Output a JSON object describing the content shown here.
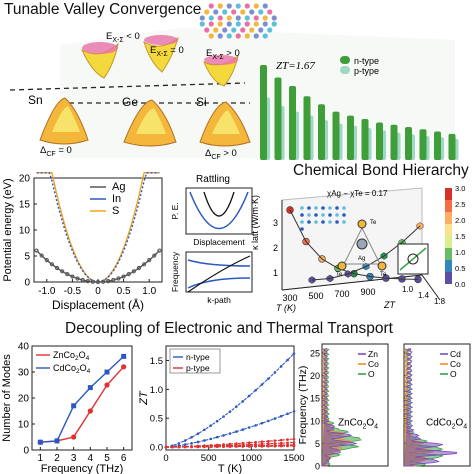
{
  "titles": {
    "tunable": "Tunable Valley Convergence",
    "bond": "Chemical Bond Hierarchy",
    "decoupling": "Decoupling of Electronic and Thermal Transport"
  },
  "valley_panel": {
    "labels_top": [
      "E",
      "E",
      "E"
    ],
    "e_labels": [
      {
        "sub": "X-Σ",
        "op": " < 0"
      },
      {
        "sub": "X-Σ",
        "op": " = 0"
      },
      {
        "sub": "X-Σ",
        "op": " > 0"
      }
    ],
    "elements": [
      "Sn",
      "Ge",
      "Si"
    ],
    "cf_labels": [
      {
        "pre": "Δ",
        "sub": "CF",
        "op": " = 0"
      },
      {
        "pre": "Δ",
        "sub": "CF",
        "op": " > 0"
      }
    ],
    "colors": {
      "orange": "#f28c28",
      "yellow": "#f4d93c",
      "pink": "#e86fa8"
    }
  },
  "zt_bars": {
    "label": "ZT=1.67",
    "legend": [
      "n-type",
      "p-type"
    ],
    "n_values": [
      1.67,
      1.45,
      1.3,
      1.12,
      0.98,
      0.85,
      0.78,
      0.72,
      0.66,
      0.62,
      0.58,
      0.54,
      0.5,
      0.46
    ],
    "p_values": [
      1.1,
      0.95,
      0.85,
      0.78,
      0.7,
      0.64,
      0.6,
      0.56,
      0.52,
      0.48,
      0.45,
      0.42,
      0.4,
      0.37
    ],
    "colors": {
      "n": "#3f9d3a",
      "p": "#9fd8c6"
    }
  },
  "potential_chart": {
    "ylabel": "Potential energy (eV)",
    "xlabel": "Displacement (Å)",
    "yticks": [
      "0",
      "5",
      "10",
      "15",
      "20"
    ],
    "xticks": [
      "-1.0",
      "-0.5",
      "0",
      "0.5",
      "1.0"
    ],
    "legend": [
      "Ag",
      "In",
      "S"
    ],
    "colors": {
      "Ag": "#555555",
      "In": "#2b59c3",
      "S": "#f2a21f"
    }
  },
  "rattling": {
    "title": "Rattling",
    "ylabel1": "P. E.",
    "xlabel1": "Displacement",
    "ylabel2": "Frequency",
    "xlabel2": "k-path"
  },
  "bond_chart": {
    "chi_label": "χ",
    "chi_sub1": "Ag",
    "chi_sub2": "Te",
    "chi_value": " = 0.17",
    "colorbar_ticks": [
      "3.0",
      "2.5",
      "2.0",
      "1.5",
      "1.0",
      "0.5",
      "0.0"
    ],
    "ylabel": "κ",
    "ylabel_sub": "latt",
    "ylabel_unit": " (W/m·K)",
    "yticks": [
      "1",
      "2",
      "3"
    ],
    "xlabel": "T (K)",
    "xticks": [
      "300",
      "500",
      "700",
      "900"
    ],
    "ztlabel": "ZT",
    "ztticks": [
      "1.0",
      "1.4",
      "1.8"
    ],
    "atoms": [
      "Ag",
      "Te",
      "Te",
      "Te"
    ]
  },
  "modes_chart": {
    "ylabel": "Number of Modes",
    "xlabel": "Frequency (THz)",
    "yticks": [
      "0",
      "10",
      "20",
      "30",
      "40"
    ],
    "xticks": [
      "1",
      "2",
      "3",
      "4",
      "5",
      "6"
    ],
    "series": [
      {
        "name": "ZnCo",
        "sub1": "2",
        "mid": "O",
        "sub2": "4",
        "color": "#e03030",
        "x": [
          1,
          2,
          3,
          4,
          5,
          6
        ],
        "y": [
          3,
          3.5,
          5,
          15,
          25,
          32
        ]
      },
      {
        "name": "CdCo",
        "sub1": "2",
        "mid": "O",
        "sub2": "4",
        "color": "#2b59c3",
        "x": [
          1,
          2,
          3,
          4,
          5,
          6
        ],
        "y": [
          3,
          3.5,
          17,
          24,
          30,
          36
        ]
      }
    ]
  },
  "zt_line_chart": {
    "ylabel": "ZT",
    "xlabel": "T (K)",
    "yticks": [
      "0.0",
      "0.5",
      "1.0",
      "1.5"
    ],
    "xticks": [
      "0",
      "500",
      "1000",
      "1500"
    ],
    "legend": [
      "n-type",
      "p-type"
    ],
    "colors": {
      "n": "#2b59c3",
      "p": "#e03030"
    }
  },
  "dos_chart": {
    "ylabel": "Frequency (THz)",
    "yticks": [
      "0",
      "5",
      "10",
      "15",
      "20",
      "25"
    ],
    "compounds": [
      {
        "name": "ZnCo",
        "sub1": "2",
        "mid": "O",
        "sub2": "4",
        "legend": [
          "Zn",
          "Co",
          "O"
        ]
      },
      {
        "name": "CdCo",
        "sub1": "2",
        "mid": "O",
        "sub2": "4",
        "legend": [
          "Cd",
          "Co",
          "O"
        ]
      }
    ],
    "colors": {
      "metal": "#7b4db5",
      "Co": "#f28c28",
      "O": "#3aa047"
    }
  }
}
